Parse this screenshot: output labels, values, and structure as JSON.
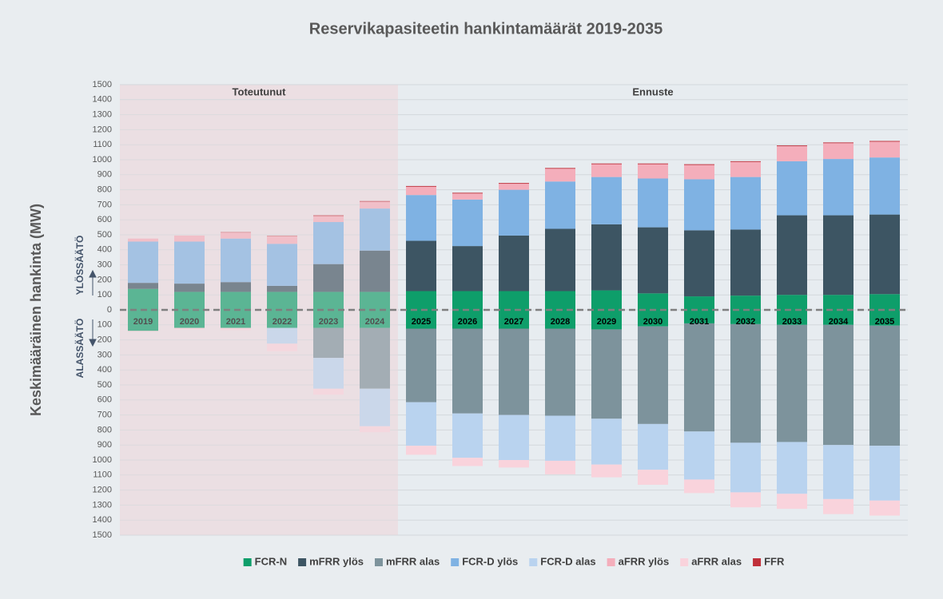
{
  "chart_data": {
    "type": "bar",
    "stacked": true,
    "title": "Reservikapasiteetin hankintamäärät 2019-2035",
    "y_label": "Keskimääräinen hankinta (MW)",
    "up_label": "YLÖSSÄÄTÖ",
    "down_label": "ALASSÄÄTÖ",
    "regions": [
      {
        "label": "Toteutunut",
        "start": "2019",
        "end": "2024",
        "color": "#ecdfe3"
      },
      {
        "label": "Ennuste",
        "start": "2025",
        "end": "2035",
        "color": "#e7ecf0"
      }
    ],
    "categories": [
      "2019",
      "2020",
      "2021",
      "2022",
      "2023",
      "2024",
      "2025",
      "2026",
      "2027",
      "2028",
      "2029",
      "2030",
      "2031",
      "2032",
      "2033",
      "2034",
      "2035"
    ],
    "series": [
      {
        "name": "FCR-N",
        "color": "#0e9e6a",
        "mirrored": true,
        "values": [
          140,
          120,
          120,
          120,
          120,
          120,
          125,
          125,
          125,
          125,
          130,
          110,
          90,
          95,
          100,
          100,
          105
        ]
      },
      {
        "name": "mFRR ylös",
        "color": "#3d5563",
        "values": [
          40,
          55,
          65,
          40,
          185,
          275,
          335,
          300,
          370,
          415,
          440,
          440,
          440,
          440,
          530,
          530,
          530
        ]
      },
      {
        "name": "mFRR alas",
        "color": "#7d939c",
        "values": [
          0,
          0,
          0,
          0,
          -200,
          -405,
          -490,
          -565,
          -575,
          -580,
          -595,
          -650,
          -720,
          -790,
          -780,
          -800,
          -800
        ]
      },
      {
        "name": "FCR-D ylös",
        "color": "#7fb2e3",
        "values": [
          275,
          280,
          290,
          280,
          280,
          280,
          305,
          310,
          305,
          315,
          315,
          325,
          340,
          350,
          360,
          375,
          380
        ]
      },
      {
        "name": "FCR-D alas",
        "color": "#b9d3ef",
        "values": [
          0,
          0,
          0,
          -105,
          -205,
          -250,
          -290,
          -295,
          -300,
          -300,
          -305,
          -305,
          -320,
          -330,
          -345,
          -360,
          -365
        ]
      },
      {
        "name": "aFRR ylös",
        "color": "#f4aebb",
        "values": [
          20,
          40,
          40,
          50,
          40,
          45,
          55,
          40,
          40,
          85,
          85,
          95,
          95,
          100,
          100,
          105,
          105
        ]
      },
      {
        "name": "aFRR alas",
        "color": "#f9d3dc",
        "values": [
          -5,
          -10,
          -15,
          -50,
          -40,
          -40,
          -60,
          -55,
          -50,
          -90,
          -85,
          -100,
          -90,
          -100,
          -100,
          -100,
          -100
        ]
      },
      {
        "name": "FFR",
        "color": "#c0303a",
        "values": [
          0,
          0,
          3,
          3,
          5,
          5,
          5,
          5,
          5,
          5,
          5,
          5,
          5,
          5,
          5,
          5,
          5
        ]
      }
    ],
    "ylim": [
      -1500,
      1500
    ],
    "yticks": [
      {
        "value": -1500,
        "label": "1500"
      },
      {
        "value": -1400,
        "label": "1400"
      },
      {
        "value": -1300,
        "label": "1300"
      },
      {
        "value": -1200,
        "label": "1200"
      },
      {
        "value": -1100,
        "label": "1100"
      },
      {
        "value": -1000,
        "label": "1000"
      },
      {
        "value": -900,
        "label": "900"
      },
      {
        "value": -800,
        "label": "800"
      },
      {
        "value": -700,
        "label": "700"
      },
      {
        "value": -600,
        "label": "600"
      },
      {
        "value": -500,
        "label": "500"
      },
      {
        "value": -400,
        "label": "400"
      },
      {
        "value": -300,
        "label": "300"
      },
      {
        "value": -200,
        "label": "200"
      },
      {
        "value": -100,
        "label": "100"
      },
      0,
      100,
      200,
      300,
      400,
      500,
      600,
      700,
      800,
      900,
      1000,
      1100,
      1200,
      1300,
      1400,
      1500
    ],
    "grid": true,
    "legend": "bottom"
  }
}
